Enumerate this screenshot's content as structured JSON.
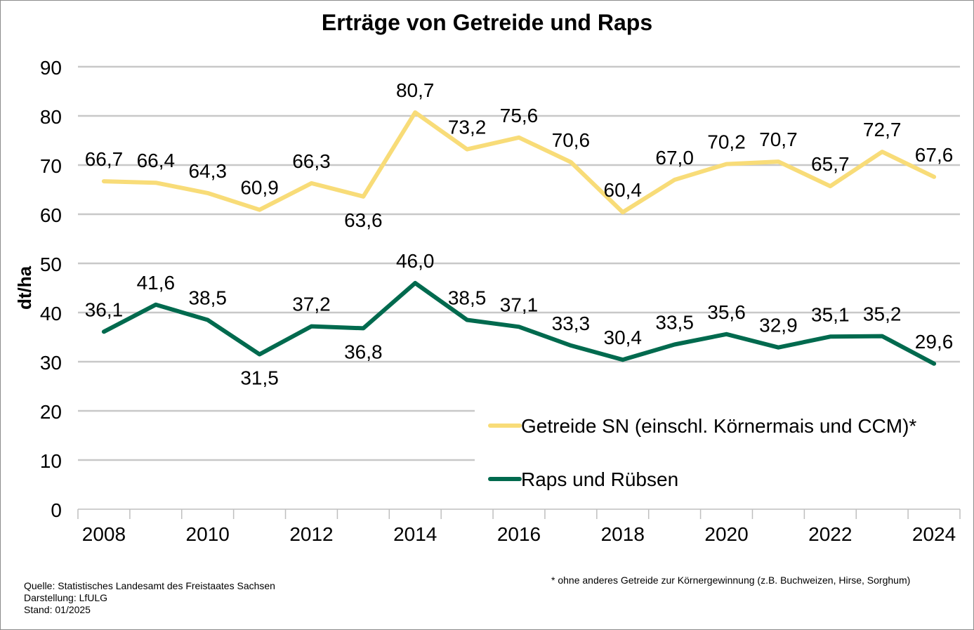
{
  "title": "Erträge von Getreide und Raps",
  "footnotes": {
    "source": "Quelle: Statistisches Landesamt des Freistaates Sachsen",
    "presentation": "Darstellung: LfULG",
    "status": "Stand: 01/2025",
    "note": "* ohne anderes Getreide zur Körnergewinnung (z.B. Buchweizen, Hirse, Sorghum)"
  },
  "chart_data": {
    "type": "line",
    "title": "Erträge von Getreide und Raps",
    "xlabel": "",
    "ylabel": "dt/ha",
    "ylim": [
      0,
      90
    ],
    "yticks": [
      0,
      10,
      20,
      30,
      40,
      50,
      60,
      70,
      80,
      90
    ],
    "x": [
      2008,
      2009,
      2010,
      2011,
      2012,
      2013,
      2014,
      2015,
      2016,
      2017,
      2018,
      2019,
      2020,
      2021,
      2022,
      2023,
      2024
    ],
    "xtick_labels": [
      "2008",
      "2010",
      "2012",
      "2014",
      "2016",
      "2018",
      "2020",
      "2022",
      "2024"
    ],
    "grid": true,
    "legend_position": "lower-right",
    "series": [
      {
        "name": "Getreide SN (einschl. Körnermais und CCM)*",
        "color": "#f8dc78",
        "values": [
          66.7,
          66.4,
          64.3,
          60.9,
          66.3,
          63.6,
          80.7,
          73.2,
          75.6,
          70.6,
          60.4,
          67.0,
          70.2,
          70.7,
          65.7,
          72.7,
          67.6
        ],
        "labels": [
          "66,7",
          "66,4",
          "64,3",
          "60,9",
          "66,3",
          "63,6",
          "80,7",
          "73,2",
          "75,6",
          "70,6",
          "60,4",
          "67,0",
          "70,2",
          "70,7",
          "65,7",
          "72,7",
          "67,6"
        ],
        "label_side": [
          "above",
          "above",
          "above",
          "above",
          "above",
          "below",
          "above",
          "above",
          "above",
          "above",
          "above",
          "above",
          "above",
          "above",
          "above",
          "above",
          "above"
        ]
      },
      {
        "name": "Raps und Rübsen",
        "color": "#006a4e",
        "values": [
          36.1,
          41.6,
          38.5,
          31.5,
          37.2,
          36.8,
          46.0,
          38.5,
          37.1,
          33.3,
          30.4,
          33.5,
          35.6,
          32.9,
          35.1,
          35.2,
          29.6
        ],
        "labels": [
          "36,1",
          "41,6",
          "38,5",
          "31,5",
          "37,2",
          "36,8",
          "46,0",
          "38,5",
          "37,1",
          "33,3",
          "30,4",
          "33,5",
          "35,6",
          "32,9",
          "35,1",
          "35,2",
          "29,6"
        ],
        "label_side": [
          "above",
          "above",
          "above",
          "below",
          "above",
          "below",
          "above",
          "above",
          "above",
          "above",
          "above",
          "above",
          "above",
          "above",
          "above",
          "above",
          "above"
        ]
      }
    ]
  }
}
